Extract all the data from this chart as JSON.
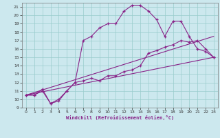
{
  "xlabel": "Windchill (Refroidissement éolien,°C)",
  "bg_color": "#cce8ee",
  "line_color": "#882288",
  "grid_color": "#99cccc",
  "xlim": [
    -0.5,
    23.5
  ],
  "ylim": [
    9,
    21.5
  ],
  "xticks": [
    0,
    1,
    2,
    3,
    4,
    5,
    6,
    7,
    8,
    9,
    10,
    11,
    12,
    13,
    14,
    15,
    16,
    17,
    18,
    19,
    20,
    21,
    22,
    23
  ],
  "yticks": [
    9,
    10,
    11,
    12,
    13,
    14,
    15,
    16,
    17,
    18,
    19,
    20,
    21
  ],
  "curve1_x": [
    0,
    1,
    2,
    3,
    4,
    5,
    6,
    7,
    8,
    9,
    10,
    11,
    12,
    13,
    14,
    15,
    16,
    17,
    18,
    19,
    20,
    21,
    22,
    23
  ],
  "curve1_y": [
    10.5,
    10.5,
    11.0,
    9.5,
    10.0,
    11.0,
    12.0,
    17.0,
    17.5,
    18.5,
    19.0,
    19.0,
    20.5,
    21.2,
    21.2,
    20.5,
    19.5,
    17.5,
    19.3,
    19.3,
    17.5,
    16.0,
    15.7,
    15.0
  ],
  "curve2_x": [
    0,
    1,
    2,
    3,
    4,
    5,
    6,
    7,
    8,
    9,
    10,
    11,
    12,
    13,
    14,
    15,
    16,
    17,
    18,
    19,
    20,
    21,
    22,
    23
  ],
  "curve2_y": [
    10.5,
    10.5,
    11.2,
    9.5,
    9.8,
    11.0,
    12.0,
    12.2,
    12.5,
    12.2,
    12.8,
    12.8,
    13.3,
    13.5,
    14.0,
    15.5,
    15.8,
    16.2,
    16.5,
    17.0,
    16.8,
    17.0,
    16.0,
    15.0
  ],
  "line1_x": [
    0,
    23
  ],
  "line1_y": [
    10.5,
    15.0
  ],
  "line2_x": [
    0,
    23
  ],
  "line2_y": [
    10.5,
    17.5
  ]
}
